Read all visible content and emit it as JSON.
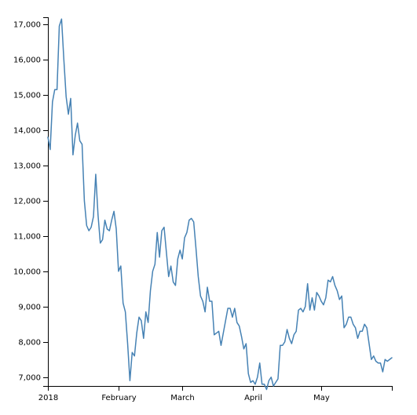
{
  "chart_data": {
    "type": "line",
    "title": "",
    "xlabel": "",
    "ylabel": "",
    "x_ticks": [
      "2018",
      "February",
      "March",
      "April",
      "May"
    ],
    "y_ticks": [
      7000,
      8000,
      9000,
      10000,
      11000,
      12000,
      13000,
      14000,
      15000,
      16000,
      17000
    ],
    "y_tick_labels": [
      "7,000",
      "8,000",
      "9,000",
      "10,000",
      "11,000",
      "12,000",
      "13,000",
      "14,000",
      "15,000",
      "16,000",
      "17,000"
    ],
    "xlim": [
      "2018-01-01",
      "2018-06-01"
    ],
    "ylim": [
      6750,
      17200
    ],
    "grid": false,
    "line_color": "#4682b4",
    "series": [
      {
        "x": [
          "2018-01-01",
          "2018-01-02",
          "2018-01-03",
          "2018-01-04",
          "2018-01-05",
          "2018-01-06",
          "2018-01-07",
          "2018-01-08",
          "2018-01-09",
          "2018-01-10",
          "2018-01-11",
          "2018-01-12",
          "2018-01-13",
          "2018-01-14",
          "2018-01-15",
          "2018-01-16",
          "2018-01-17",
          "2018-01-18",
          "2018-01-19",
          "2018-01-20",
          "2018-01-21",
          "2018-01-22",
          "2018-01-23",
          "2018-01-24",
          "2018-01-25",
          "2018-01-26",
          "2018-01-27",
          "2018-01-28",
          "2018-01-29",
          "2018-01-30",
          "2018-01-31",
          "2018-02-01",
          "2018-02-02",
          "2018-02-03",
          "2018-02-04",
          "2018-02-05",
          "2018-02-06",
          "2018-02-07",
          "2018-02-08",
          "2018-02-09",
          "2018-02-10",
          "2018-02-11",
          "2018-02-12",
          "2018-02-13",
          "2018-02-14",
          "2018-02-15",
          "2018-02-16",
          "2018-02-17",
          "2018-02-18",
          "2018-02-19",
          "2018-02-20",
          "2018-02-21",
          "2018-02-22",
          "2018-02-23",
          "2018-02-24",
          "2018-02-25",
          "2018-02-26",
          "2018-02-27",
          "2018-02-28",
          "2018-03-01",
          "2018-03-02",
          "2018-03-03",
          "2018-03-04",
          "2018-03-05",
          "2018-03-06",
          "2018-03-07",
          "2018-03-08",
          "2018-03-09",
          "2018-03-10",
          "2018-03-11",
          "2018-03-12",
          "2018-03-13",
          "2018-03-14",
          "2018-03-15",
          "2018-03-16",
          "2018-03-17",
          "2018-03-18",
          "2018-03-19",
          "2018-03-20",
          "2018-03-21",
          "2018-03-22",
          "2018-03-23",
          "2018-03-24",
          "2018-03-25",
          "2018-03-26",
          "2018-03-27",
          "2018-03-28",
          "2018-03-29",
          "2018-03-30",
          "2018-03-31",
          "2018-04-01",
          "2018-04-02",
          "2018-04-03",
          "2018-04-04",
          "2018-04-05",
          "2018-04-06",
          "2018-04-07",
          "2018-04-08",
          "2018-04-09",
          "2018-04-10",
          "2018-04-11",
          "2018-04-12",
          "2018-04-13",
          "2018-04-14",
          "2018-04-15",
          "2018-04-16",
          "2018-04-17",
          "2018-04-18",
          "2018-04-19",
          "2018-04-20",
          "2018-04-21",
          "2018-04-22",
          "2018-04-23",
          "2018-04-24",
          "2018-04-25",
          "2018-04-26",
          "2018-04-27",
          "2018-04-28",
          "2018-04-29",
          "2018-04-30",
          "2018-05-01",
          "2018-05-02",
          "2018-05-03",
          "2018-05-04",
          "2018-05-05",
          "2018-05-06",
          "2018-05-07",
          "2018-05-08",
          "2018-05-09",
          "2018-05-10",
          "2018-05-11",
          "2018-05-12",
          "2018-05-13",
          "2018-05-14",
          "2018-05-15",
          "2018-05-16",
          "2018-05-17",
          "2018-05-18",
          "2018-05-19",
          "2018-05-20",
          "2018-05-21",
          "2018-05-22",
          "2018-05-23",
          "2018-05-24",
          "2018-05-25",
          "2018-05-26",
          "2018-05-27",
          "2018-05-28",
          "2018-05-29",
          "2018-05-30",
          "2018-05-31",
          "2018-06-01"
        ],
        "values": [
          13800,
          13450,
          14800,
          15150,
          15150,
          16950,
          17150,
          16000,
          14950,
          14450,
          14900,
          13300,
          13850,
          14200,
          13700,
          13600,
          12000,
          11300,
          11150,
          11250,
          11550,
          12750,
          11600,
          10800,
          10900,
          11450,
          11200,
          11150,
          11450,
          11700,
          11200,
          10000,
          10150,
          9100,
          8850,
          7950,
          6900,
          7700,
          7600,
          8250,
          8700,
          8600,
          8100,
          8850,
          8550,
          9450,
          10000,
          10200,
          11100,
          10400,
          11150,
          11250,
          10550,
          9850,
          10150,
          9700,
          9600,
          10350,
          10600,
          10350,
          10950,
          11100,
          11450,
          11500,
          11400,
          10650,
          9850,
          9300,
          9150,
          8850,
          9550,
          9150,
          9150,
          8200,
          8250,
          8300,
          7900,
          8250,
          8600,
          8950,
          8950,
          8700,
          8950,
          8550,
          8450,
          8150,
          7800,
          7950,
          7100,
          6850,
          6900,
          6800,
          7000,
          7400,
          6800,
          6800,
          6650,
          6900,
          7000,
          6750,
          6850,
          6950,
          7900,
          7900,
          8000,
          8350,
          8100,
          7950,
          8200,
          8300,
          8900,
          8950,
          8850,
          9000,
          9650,
          8900,
          9250,
          8900,
          9400,
          9300,
          9150,
          9050,
          9250,
          9750,
          9700,
          9850,
          9600,
          9450,
          9200,
          9300,
          8400,
          8500,
          8700,
          8700,
          8500,
          8400,
          8100,
          8300,
          8300,
          8500,
          8400,
          7950,
          7500,
          7600,
          7450,
          7400,
          7400,
          7150,
          7500,
          7450,
          7500,
          7550
        ]
      }
    ]
  }
}
